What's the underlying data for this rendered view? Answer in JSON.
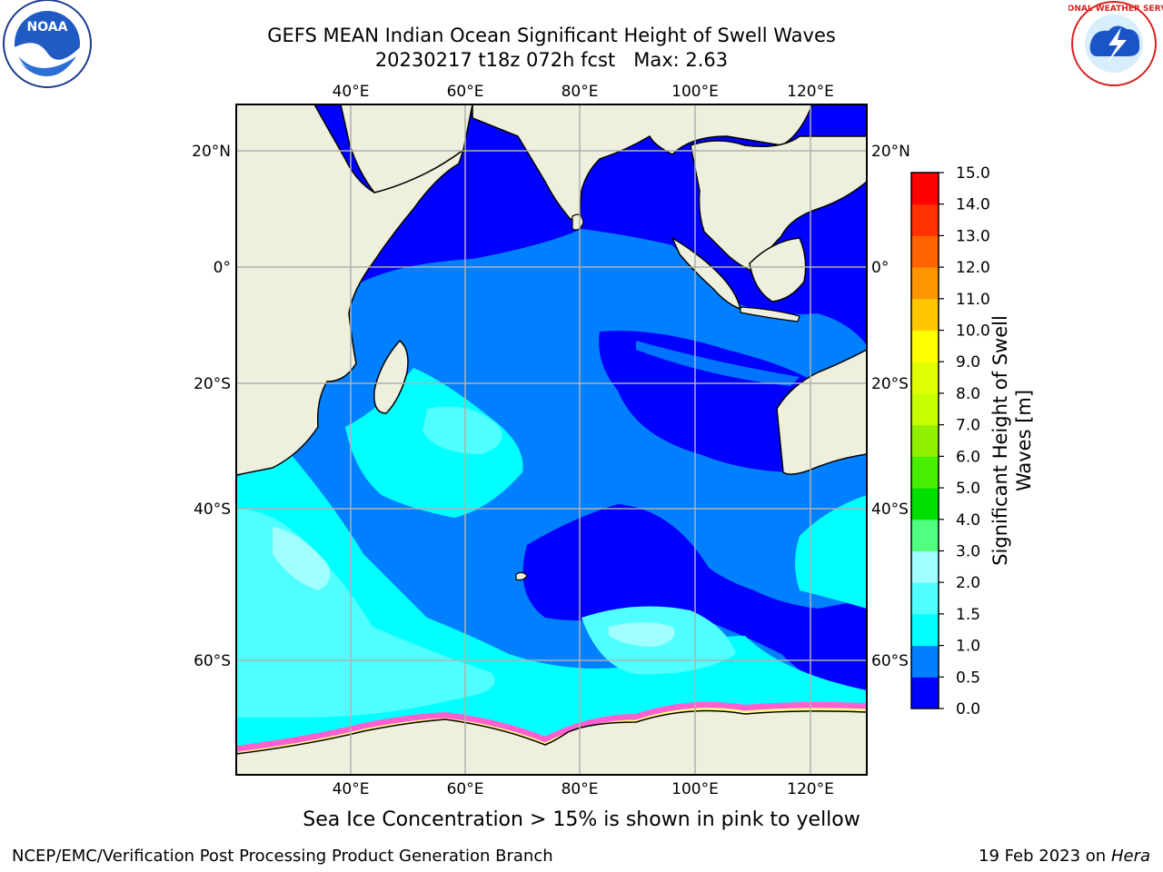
{
  "header": {
    "title": "GEFS MEAN Indian Ocean Significant Height of Swell Waves",
    "subtitle": "20230217 t18z 072h fcst   Max: 2.63"
  },
  "map": {
    "lon_ticks": [
      "40°E",
      "60°E",
      "80°E",
      "100°E",
      "120°E"
    ],
    "lat_ticks": [
      "20°N",
      "0°",
      "20°S",
      "40°S",
      "60°S"
    ],
    "lon_range": [
      20,
      130
    ],
    "lat_range": [
      -73,
      27
    ],
    "colors": {
      "land": "#efefdd",
      "grid": "#b0b0b0"
    }
  },
  "colorbar": {
    "label_line1": "Significant Height of Swell",
    "label_line2": "Waves [m]",
    "levels": [
      "0.0",
      "0.5",
      "1.0",
      "1.5",
      "2.0",
      "3.0",
      "4.0",
      "5.0",
      "6.0",
      "7.0",
      "8.0",
      "9.0",
      "10.0",
      "11.0",
      "12.0",
      "13.0",
      "14.0",
      "15.0"
    ],
    "colors": [
      "#0000ff",
      "#0080ff",
      "#00ffff",
      "#50ffff",
      "#a0ffff",
      "#50ff80",
      "#00e000",
      "#48ee00",
      "#90f000",
      "#c8ff00",
      "#e0ff00",
      "#ffff00",
      "#ffc800",
      "#ff9600",
      "#ff6400",
      "#ff3200",
      "#ff0000"
    ]
  },
  "footer": {
    "caption": "Sea Ice Concentration > 15% is shown in pink to yellow",
    "left": "NCEP/EMC/Verification Post Processing Product Generation Branch",
    "date": "19 Feb 2023 on",
    "machine": "Hera"
  },
  "logos": {
    "noaa_label": "NOAA",
    "nws_text": "NATIONAL WEATHER SERVICE"
  }
}
